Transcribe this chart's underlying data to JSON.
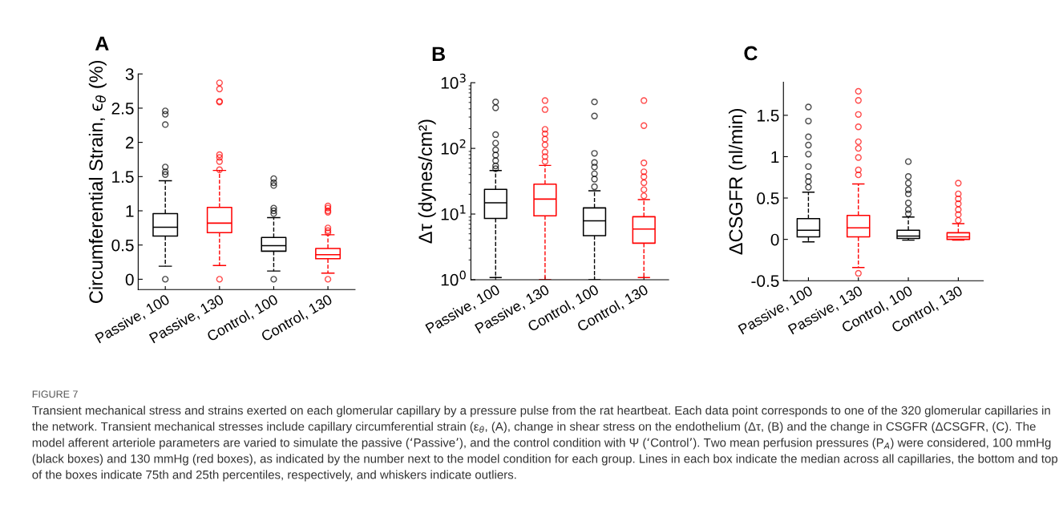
{
  "chart_data": [
    {
      "type": "box",
      "title": "A",
      "ylabel": "Circumferential Strain, ϵ$_{θ}$ (%)",
      "categories": [
        "Passive, 100",
        "Passive, 130",
        "Control, 100",
        "Control, 130"
      ],
      "colors": [
        "#000000",
        "#ff0000",
        "#000000",
        "#ff0000"
      ],
      "line_style": "dashed",
      "grid": false,
      "ylim": [
        -0.15,
        3
      ],
      "yticks": [
        0,
        0.5,
        1,
        1.5,
        2,
        2.5,
        3
      ],
      "boxes": [
        {
          "low": 0.19,
          "q1": 0.63,
          "median": 0.76,
          "q3": 0.96,
          "high": 1.44,
          "outliers": [
            0,
            1.53,
            1.57,
            1.64,
            2.26,
            2.41,
            2.46
          ]
        },
        {
          "low": 0.2,
          "q1": 0.68,
          "median": 0.82,
          "q3": 1.05,
          "high": 1.59,
          "outliers": [
            0,
            1.6,
            1.72,
            1.78,
            1.82,
            2.59,
            2.6,
            2.78,
            2.87
          ]
        },
        {
          "low": 0.12,
          "q1": 0.41,
          "median": 0.49,
          "q3": 0.61,
          "high": 0.9,
          "outliers": [
            0,
            0.96,
            1.0,
            1.04,
            1.37,
            1.41,
            1.47
          ]
        },
        {
          "low": 0.09,
          "q1": 0.3,
          "median": 0.36,
          "q3": 0.45,
          "high": 0.65,
          "outliers": [
            0,
            0.68,
            0.71,
            0.75,
            0.98,
            1.0,
            1.04,
            1.07
          ]
        }
      ],
      "annotations": [
        "FIGURE 7",
        "Transient mechanical stress and strains exerted on each glomerular capillary by a pressure pulse from the rat heartbeat. Each data point corresponds to one of the 320 glomerular capillaries in the network. Transient mechanical stresses include capillary circumferential strain (ε$_{θ}$, (A), change in shear stress on the endothelium (Δτ, (B) and the change in CSGFR (ΔCSGFR, (C). The model afferent arteriole parameters are varied to simulate the passive (‘Passive’), and the control condition with Ψ (‘Control’). Two mean perfusion pressures (P$_{A}$) were considered, 100 mmHg (black boxes) and 130 mmHg (red boxes), as indicated by the number next to the model condition for each group. Lines in each box indicate the median across all capillaries, the bottom and top of the boxes indicate 75th and 25th percentiles, respectively, and whiskers indicate outliers."
      ]
    },
    {
      "type": "box",
      "title": "B",
      "ylabel": "Δτ (dynes/cm²)",
      "categories": [
        "Passive, 100",
        "Passive, 130",
        "Control, 100",
        "Control, 130"
      ],
      "colors": [
        "#000000",
        "#ff0000",
        "#000000",
        "#ff0000"
      ],
      "line_style": "dashed",
      "grid": false,
      "log": true,
      "ylim": [
        1,
        1000
      ],
      "yticks": [
        {
          "value": 1,
          "label": "10$^{0}$"
        },
        {
          "value": 10,
          "label": "10$^{1}$"
        },
        {
          "value": 100,
          "label": "10$^{2}$"
        },
        {
          "value": 1000,
          "label": "10$^{3}$"
        }
      ],
      "boxes": [
        {
          "low": 1.08,
          "q1": 8.6,
          "median": 14.8,
          "q3": 23.7,
          "high": 46,
          "outliers": [
            49,
            54,
            65,
            79,
            95,
            120,
            162,
            415,
            510
          ]
        },
        {
          "low": 1.0,
          "q1": 9.4,
          "median": 16.9,
          "q3": 28.5,
          "high": 55,
          "outliers": [
            63,
            75,
            88,
            113,
            138,
            167,
            195,
            390,
            535
          ]
        },
        {
          "low": 1.0,
          "q1": 4.7,
          "median": 7.9,
          "q3": 12.4,
          "high": 22.6,
          "outliers": [
            26,
            34,
            41,
            52,
            61,
            84,
            311,
            510
          ]
        },
        {
          "low": 1.08,
          "q1": 3.6,
          "median": 5.9,
          "q3": 9.1,
          "high": 16.6,
          "outliers": [
            18.9,
            23.5,
            30,
            37,
            44,
            60,
            222,
            535
          ]
        }
      ]
    },
    {
      "type": "box",
      "title": "C",
      "ylabel": "ΔCSGFR (nl/min)",
      "categories": [
        "Passive, 100",
        "Passive, 130",
        "Control, 100",
        "Control, 130"
      ],
      "colors": [
        "#000000",
        "#ff0000",
        "#000000",
        "#ff0000"
      ],
      "line_style": "dashed",
      "grid": false,
      "ylim": [
        -0.5,
        1.9
      ],
      "yticks": [
        -0.5,
        0,
        0.5,
        1,
        1.5
      ],
      "boxes": [
        {
          "low": -0.03,
          "q1": 0.03,
          "median": 0.11,
          "q3": 0.25,
          "high": 0.57,
          "outliers": [
            0.63,
            0.7,
            0.76,
            0.88,
            1.03,
            1.14,
            1.24,
            1.43,
            1.6
          ]
        },
        {
          "low": -0.34,
          "q1": 0.03,
          "median": 0.14,
          "q3": 0.29,
          "high": 0.67,
          "outliers": [
            -0.41,
            0.78,
            0.84,
            0.99,
            1.1,
            1.18,
            1.36,
            1.51,
            1.68,
            1.79
          ]
        },
        {
          "low": -0.01,
          "q1": 0.01,
          "median": 0.04,
          "q3": 0.11,
          "high": 0.27,
          "outliers": [
            0.31,
            0.36,
            0.44,
            0.55,
            0.6,
            0.68,
            0.76,
            0.94
          ]
        },
        {
          "low": -0.01,
          "q1": 0.0,
          "median": 0.03,
          "q3": 0.08,
          "high": 0.19,
          "outliers": [
            0.23,
            0.3,
            0.36,
            0.43,
            0.49,
            0.55,
            0.68
          ]
        }
      ]
    }
  ]
}
